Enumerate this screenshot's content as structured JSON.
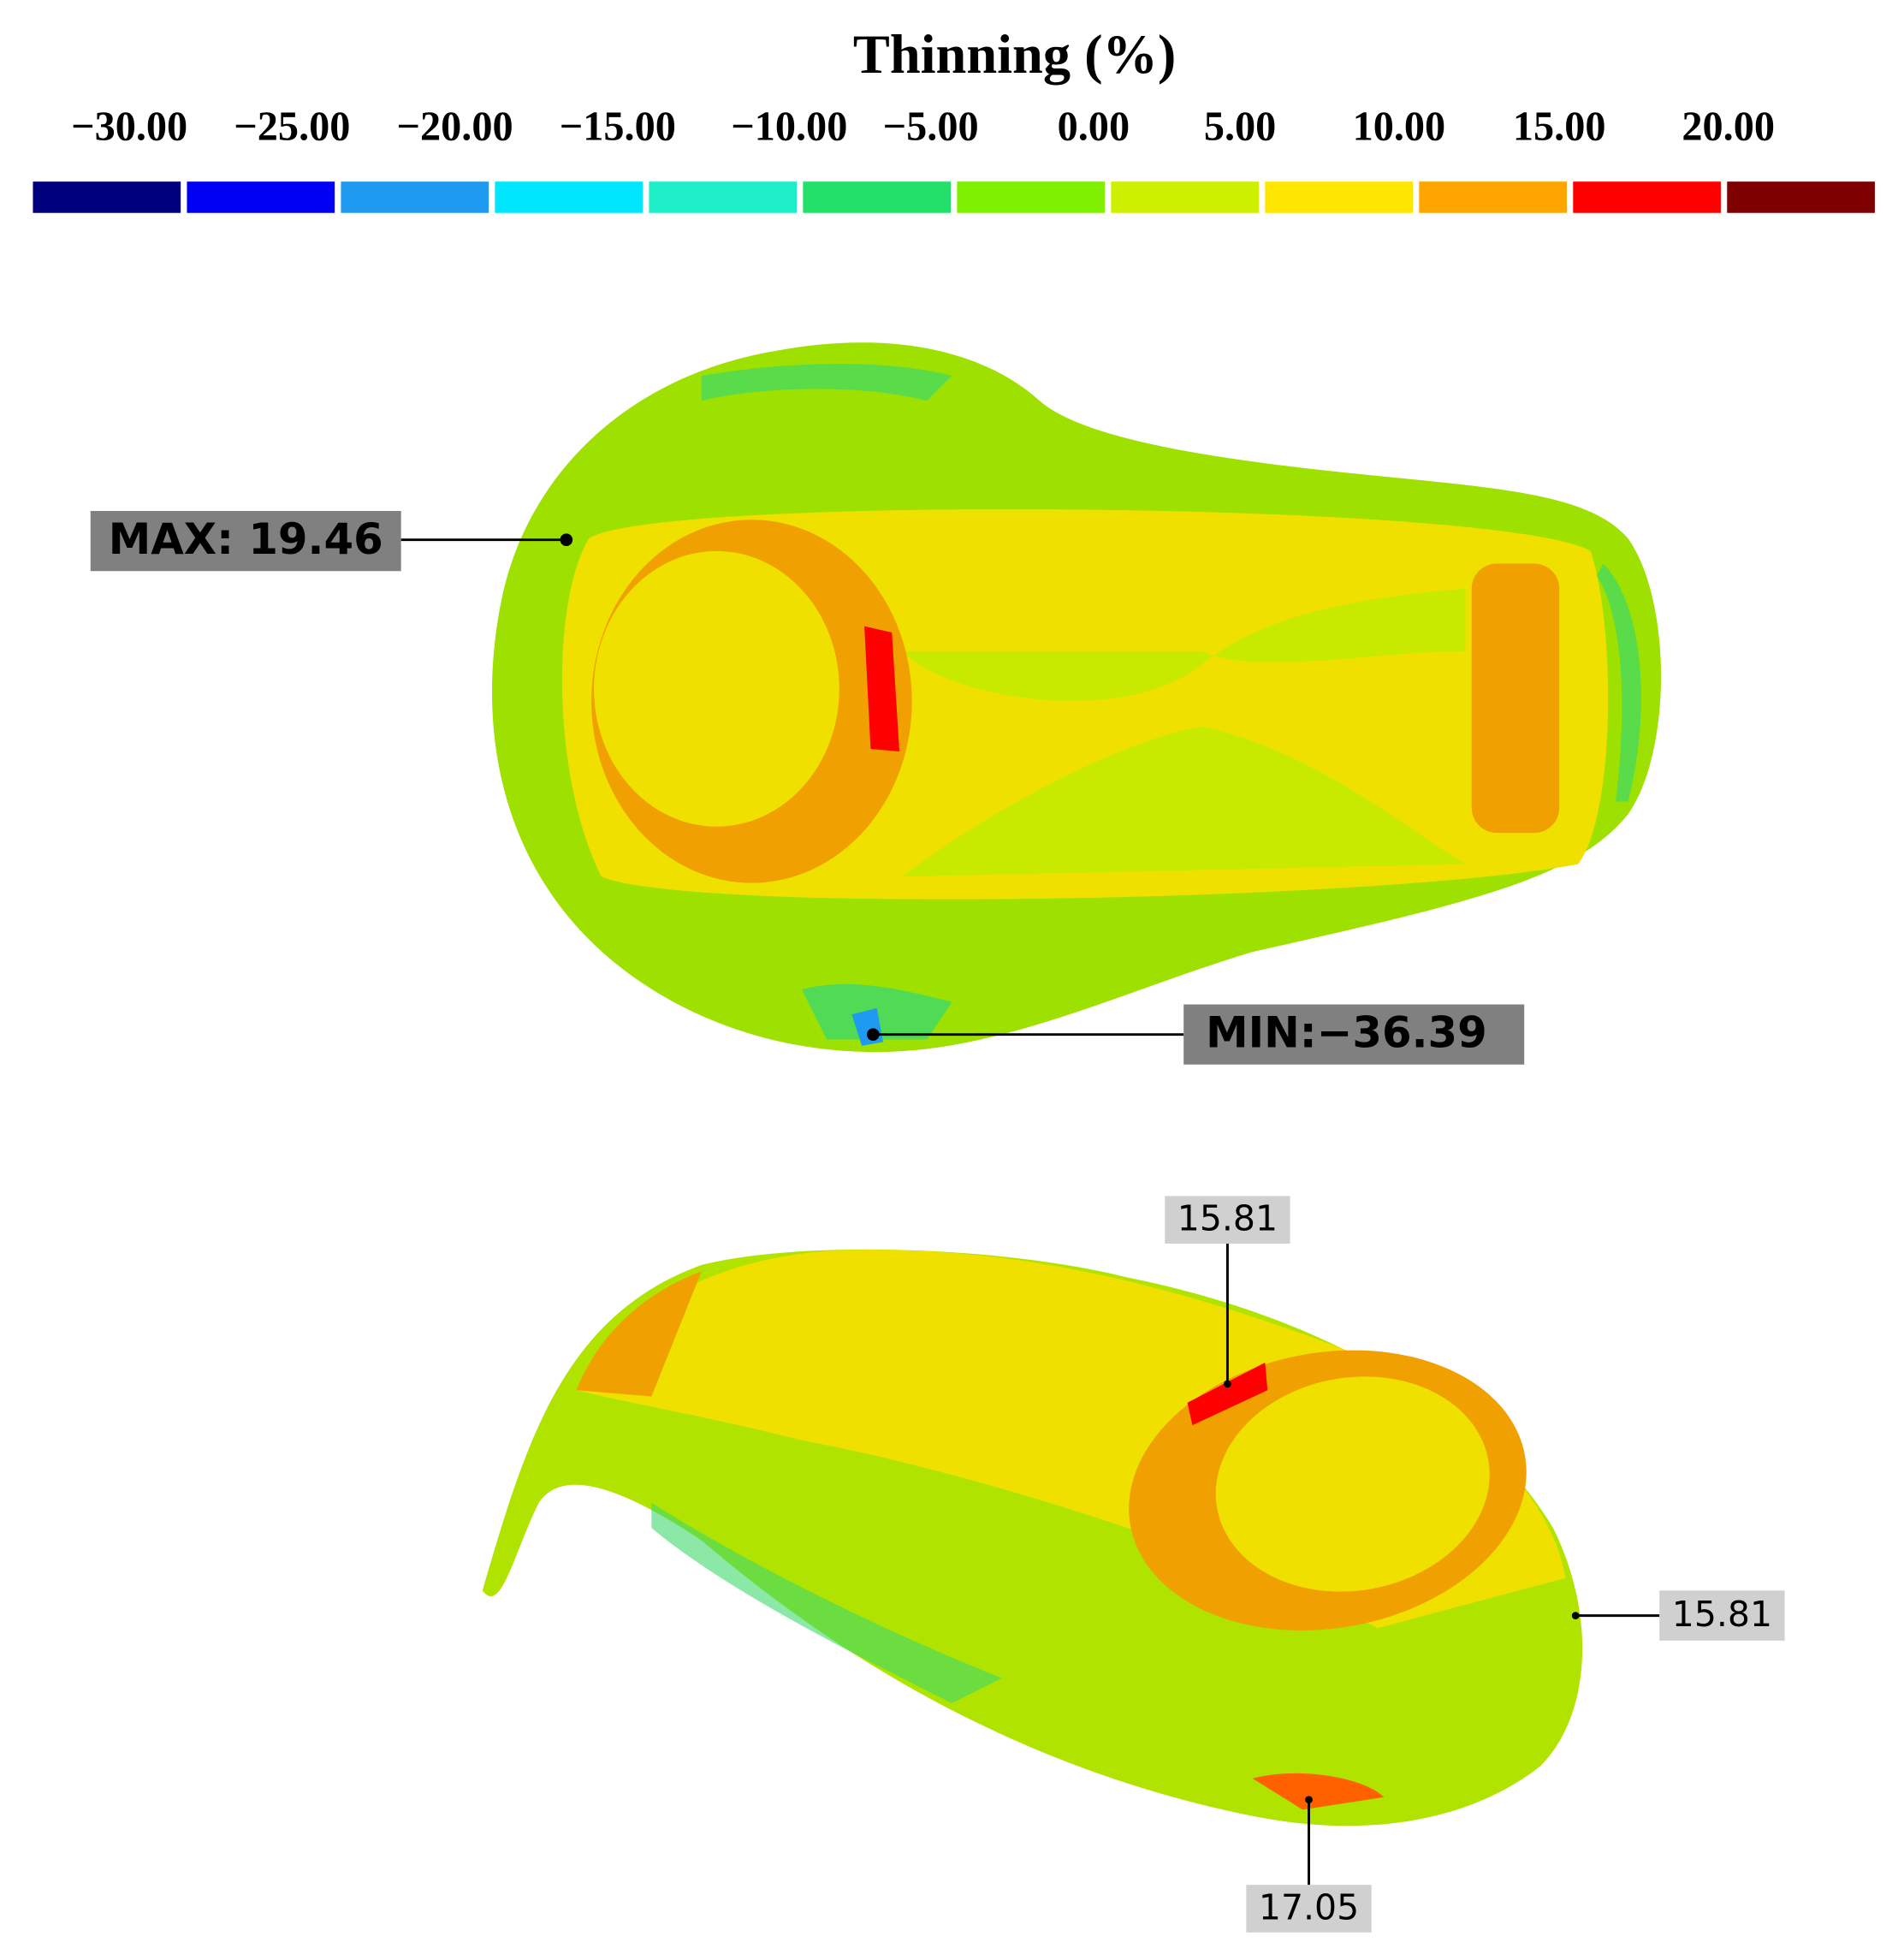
{
  "legend": {
    "title": "Thinning (%)",
    "ticks": [
      "−30.00",
      "−25.00",
      "−20.00",
      "−15.00",
      "−10.00",
      "−5.00",
      "0.00",
      "5.00",
      "10.00",
      "15.00",
      "20.00"
    ],
    "colors": [
      "#00007f",
      "#0000f5",
      "#1e9af0",
      "#00e6ff",
      "#1fefc8",
      "#22e06a",
      "#7ff000",
      "#ccf000",
      "#ffe600",
      "#ffa500",
      "#ff0000",
      "#7f0000"
    ]
  },
  "annotations": [
    "MAX: 19.46",
    "MIN:−36.39",
    "15.81",
    "15.81",
    "17.05"
  ]
}
